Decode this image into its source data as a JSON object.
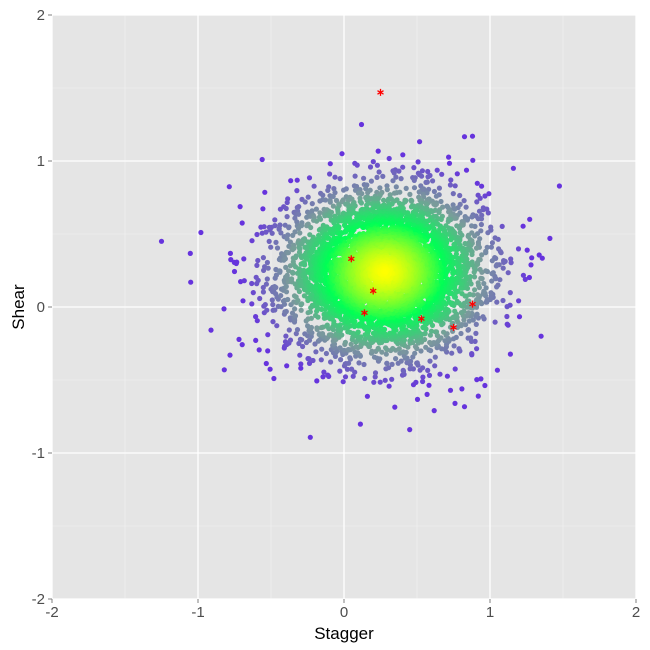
{
  "chart_data": {
    "type": "scatter",
    "title": "",
    "xlabel": "Stagger",
    "ylabel": "Shear",
    "xlim": [
      -2,
      2
    ],
    "ylim": [
      -2,
      2
    ],
    "x_ticks": [
      -2,
      -1,
      0,
      1,
      2
    ],
    "y_ticks": [
      -2,
      -1,
      0,
      1,
      2
    ],
    "x_tick_labels": [
      "-2",
      "-1",
      "0",
      "1",
      "2"
    ],
    "y_tick_labels": [
      "-2",
      "-1",
      "0",
      "1",
      "2"
    ],
    "grid": true,
    "legend": "none",
    "colors": {
      "panel": "#e5e5e5",
      "grid_major": "#ffffff",
      "grid_minor": "#f2f2f2",
      "density_high": "#ffff00",
      "density_mid": "#00ff55",
      "density_low": "#7a9b9b",
      "outlier": "#6633dd",
      "highlight": "#ff0000"
    },
    "point_cloud": {
      "center": [
        0.28,
        0.24
      ],
      "sd": [
        0.33,
        0.27
      ],
      "n_points": 5000
    },
    "isolated_points": [
      {
        "x": -1.25,
        "y": 0.45
      },
      {
        "x": -1.05,
        "y": 0.17
      },
      {
        "x": -0.98,
        "y": 0.51
      },
      {
        "x": -0.82,
        "y": -0.43
      },
      {
        "x": -0.56,
        "y": 1.01
      },
      {
        "x": -0.48,
        "y": -0.49
      },
      {
        "x": 0.12,
        "y": 1.25
      },
      {
        "x": 0.45,
        "y": -0.84
      },
      {
        "x": 0.88,
        "y": 1.17
      },
      {
        "x": 0.92,
        "y": -0.61
      },
      {
        "x": 1.16,
        "y": 0.95
      },
      {
        "x": 1.41,
        "y": 0.47
      },
      {
        "x": 1.35,
        "y": -0.2
      },
      {
        "x": 0.76,
        "y": -0.66
      }
    ],
    "highlighted_points": [
      {
        "x": 0.25,
        "y": 1.47
      },
      {
        "x": 0.05,
        "y": 0.33
      },
      {
        "x": 0.2,
        "y": 0.11
      },
      {
        "x": 0.14,
        "y": -0.04
      },
      {
        "x": 0.53,
        "y": -0.08
      },
      {
        "x": 0.75,
        "y": -0.14
      },
      {
        "x": 0.88,
        "y": 0.02
      }
    ]
  }
}
